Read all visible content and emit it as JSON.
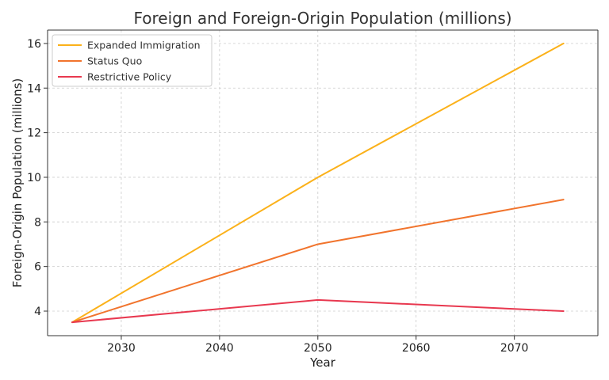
{
  "chart_data": {
    "type": "line",
    "title": "Foreign and Foreign-Origin Population (millions)",
    "xlabel": "Year",
    "ylabel": "Foreign-Origin Population (millions)",
    "x": [
      2025,
      2050,
      2075
    ],
    "xlim": [
      2022.5,
      2078.5
    ],
    "ylim": [
      2.9,
      16.6
    ],
    "xticks": [
      2030,
      2040,
      2050,
      2060,
      2070
    ],
    "yticks": [
      4,
      6,
      8,
      10,
      12,
      14,
      16
    ],
    "grid": true,
    "legend_position": "top-left",
    "series": [
      {
        "name": "Expanded Immigration",
        "color": "#fbb11a",
        "values": [
          3.5,
          10.0,
          16.0
        ]
      },
      {
        "name": "Status Quo",
        "color": "#f1742d",
        "values": [
          3.5,
          7.0,
          9.0
        ]
      },
      {
        "name": "Restrictive Policy",
        "color": "#e8384f",
        "values": [
          3.5,
          4.5,
          4.0
        ]
      }
    ]
  }
}
